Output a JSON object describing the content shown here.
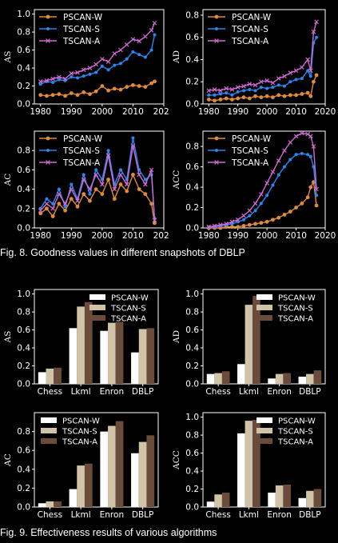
{
  "figure8": {
    "caption": "Fig. 8. Goodness values in different snapshots of DBLP"
  },
  "figure9": {
    "caption": "Fig. 9. Effectiveness results of various algorithms"
  },
  "colors": {
    "PSCAN-W_line": "#e08a3c",
    "TSCAN-S_line": "#2a86f0",
    "TSCAN-A_line": "#cf6ad3",
    "PSCAN-W_bar": "#ffffff",
    "TSCAN-S_bar": "#d1c3a8",
    "TSCAN-A_bar": "#6b4b3a"
  },
  "chart_data": [
    {
      "type": "line",
      "ylabel": "AS",
      "legend_position": "top-left",
      "x": [
        1980,
        1982,
        1984,
        1986,
        1988,
        1990,
        1992,
        1994,
        1996,
        1998,
        2000,
        2002,
        2004,
        2006,
        2008,
        2010,
        2012,
        2014,
        2016,
        2017
      ],
      "xlim": [
        1978,
        2020
      ],
      "xticks": [
        "1980",
        "1990",
        "2000",
        "2010",
        "2020"
      ],
      "ylim": [
        0,
        1.05
      ],
      "yticks": [
        "0.0",
        "0.2",
        "0.4",
        "0.6",
        "0.8",
        "1.0"
      ],
      "series": [
        {
          "name": "PSCAN-W",
          "values": [
            0.1,
            0.09,
            0.1,
            0.11,
            0.09,
            0.12,
            0.1,
            0.13,
            0.11,
            0.14,
            0.2,
            0.15,
            0.17,
            0.16,
            0.19,
            0.21,
            0.2,
            0.19,
            0.23,
            0.25
          ]
        },
        {
          "name": "TSCAN-S",
          "values": [
            0.22,
            0.25,
            0.24,
            0.27,
            0.26,
            0.3,
            0.29,
            0.31,
            0.33,
            0.35,
            0.42,
            0.38,
            0.43,
            0.45,
            0.5,
            0.58,
            0.55,
            0.52,
            0.6,
            0.77
          ]
        },
        {
          "name": "TSCAN-A",
          "values": [
            0.25,
            0.26,
            0.28,
            0.3,
            0.28,
            0.34,
            0.35,
            0.38,
            0.4,
            0.44,
            0.5,
            0.47,
            0.56,
            0.6,
            0.66,
            0.72,
            0.7,
            0.75,
            0.82,
            0.9
          ]
        }
      ]
    },
    {
      "type": "line",
      "ylabel": "AD",
      "legend_position": "top-left",
      "x": [
        1980,
        1982,
        1984,
        1986,
        1988,
        1990,
        1992,
        1994,
        1996,
        1998,
        2000,
        2002,
        2004,
        2006,
        2008,
        2010,
        2012,
        2014,
        2015,
        2016,
        2017
      ],
      "xlim": [
        1978,
        2020
      ],
      "xticks": [
        "1980",
        "1990",
        "2000",
        "2010",
        "2020"
      ],
      "ylim": [
        0,
        0.85
      ],
      "yticks": [
        "0.0",
        "0.2",
        "0.4",
        "0.6",
        "0.8"
      ],
      "series": [
        {
          "name": "PSCAN-W",
          "values": [
            0.04,
            0.03,
            0.04,
            0.05,
            0.04,
            0.05,
            0.06,
            0.05,
            0.07,
            0.06,
            0.07,
            0.06,
            0.08,
            0.07,
            0.08,
            0.08,
            0.09,
            0.1,
            0.07,
            0.2,
            0.26
          ]
        },
        {
          "name": "TSCAN-S",
          "values": [
            0.08,
            0.08,
            0.09,
            0.1,
            0.08,
            0.11,
            0.12,
            0.13,
            0.12,
            0.15,
            0.14,
            0.15,
            0.17,
            0.16,
            0.2,
            0.22,
            0.23,
            0.3,
            0.25,
            0.55,
            0.6
          ]
        },
        {
          "name": "TSCAN-A",
          "values": [
            0.12,
            0.13,
            0.12,
            0.14,
            0.13,
            0.15,
            0.16,
            0.18,
            0.17,
            0.2,
            0.21,
            0.19,
            0.23,
            0.25,
            0.28,
            0.3,
            0.33,
            0.4,
            0.3,
            0.65,
            0.74
          ]
        }
      ]
    },
    {
      "type": "line",
      "ylabel": "AC",
      "legend_position": "top-left",
      "x": [
        1980,
        1982,
        1984,
        1986,
        1988,
        1990,
        1992,
        1994,
        1996,
        1998,
        2000,
        2002,
        2004,
        2006,
        2008,
        2010,
        2012,
        2014,
        2016,
        2017
      ],
      "xlim": [
        1978,
        2020
      ],
      "xticks": [
        "1980",
        "1990",
        "2000",
        "2010",
        "2020"
      ],
      "ylim": [
        0,
        1.0
      ],
      "yticks": [
        "0.0",
        "0.2",
        "0.4",
        "0.6",
        "0.8"
      ],
      "series": [
        {
          "name": "PSCAN-W",
          "values": [
            0.15,
            0.2,
            0.12,
            0.25,
            0.18,
            0.3,
            0.22,
            0.35,
            0.28,
            0.4,
            0.35,
            0.5,
            0.3,
            0.45,
            0.38,
            0.55,
            0.4,
            0.35,
            0.25,
            0.05
          ]
        },
        {
          "name": "TSCAN-S",
          "values": [
            0.2,
            0.3,
            0.25,
            0.4,
            0.22,
            0.45,
            0.3,
            0.55,
            0.35,
            0.6,
            0.5,
            0.8,
            0.45,
            0.6,
            0.5,
            0.93,
            0.6,
            0.5,
            0.55,
            0.1
          ]
        },
        {
          "name": "TSCAN-A",
          "values": [
            0.18,
            0.25,
            0.2,
            0.35,
            0.25,
            0.4,
            0.28,
            0.5,
            0.4,
            0.55,
            0.45,
            0.75,
            0.4,
            0.55,
            0.45,
            0.85,
            0.55,
            0.45,
            0.6,
            0.08
          ]
        }
      ]
    },
    {
      "type": "line",
      "ylabel": "ACC",
      "legend_position": "top-left",
      "x": [
        1980,
        1982,
        1984,
        1986,
        1988,
        1990,
        1992,
        1994,
        1996,
        1998,
        2000,
        2002,
        2004,
        2006,
        2008,
        2010,
        2012,
        2014,
        2015,
        2016,
        2017
      ],
      "xlim": [
        1978,
        2020
      ],
      "xticks": [
        "1980",
        "1990",
        "2000",
        "2010",
        "2020"
      ],
      "ylim": [
        0,
        0.95
      ],
      "yticks": [
        "0.0",
        "0.2",
        "0.4",
        "0.6",
        "0.8"
      ],
      "series": [
        {
          "name": "PSCAN-W",
          "values": [
            0.0,
            0.0,
            0.0,
            0.01,
            0.01,
            0.01,
            0.02,
            0.03,
            0.04,
            0.05,
            0.06,
            0.08,
            0.1,
            0.13,
            0.16,
            0.2,
            0.24,
            0.3,
            0.4,
            0.45,
            0.22
          ]
        },
        {
          "name": "TSCAN-S",
          "values": [
            0.01,
            0.01,
            0.02,
            0.03,
            0.04,
            0.06,
            0.08,
            0.12,
            0.17,
            0.24,
            0.32,
            0.42,
            0.52,
            0.6,
            0.67,
            0.72,
            0.73,
            0.72,
            0.7,
            0.6,
            0.32
          ]
        },
        {
          "name": "TSCAN-A",
          "values": [
            0.01,
            0.02,
            0.03,
            0.04,
            0.06,
            0.08,
            0.12,
            0.17,
            0.24,
            0.33,
            0.44,
            0.55,
            0.66,
            0.76,
            0.84,
            0.9,
            0.93,
            0.92,
            0.9,
            0.8,
            0.38
          ]
        }
      ]
    },
    {
      "type": "bar",
      "ylabel": "AS",
      "legend_position": "top-right",
      "categories": [
        "Chess",
        "Lkml",
        "Enron",
        "DBLP"
      ],
      "ylim": [
        0,
        1.05
      ],
      "yticks": [
        "0.0",
        "0.2",
        "0.4",
        "0.6",
        "0.8",
        "1.0"
      ],
      "series": [
        {
          "name": "PSCAN-W",
          "values": [
            0.13,
            0.62,
            0.59,
            0.35
          ]
        },
        {
          "name": "TSCAN-S",
          "values": [
            0.17,
            0.86,
            0.68,
            0.61
          ]
        },
        {
          "name": "TSCAN-A",
          "values": [
            0.18,
            0.91,
            0.69,
            0.62
          ]
        }
      ]
    },
    {
      "type": "bar",
      "ylabel": "AD",
      "legend_position": "top-right",
      "categories": [
        "Chess",
        "Lkml",
        "Enron",
        "DBLP"
      ],
      "ylim": [
        0,
        1.05
      ],
      "yticks": [
        "0.0",
        "0.2",
        "0.4",
        "0.6",
        "0.8",
        "1.0"
      ],
      "series": [
        {
          "name": "PSCAN-W",
          "values": [
            0.11,
            0.22,
            0.06,
            0.08
          ]
        },
        {
          "name": "TSCAN-S",
          "values": [
            0.12,
            0.88,
            0.11,
            0.11
          ]
        },
        {
          "name": "TSCAN-A",
          "values": [
            0.14,
            0.98,
            0.12,
            0.15
          ]
        }
      ]
    },
    {
      "type": "bar",
      "ylabel": "AC",
      "legend_position": "top-left",
      "categories": [
        "Chess",
        "Lkml",
        "Enron",
        "DBLP"
      ],
      "ylim": [
        0,
        1.0
      ],
      "yticks": [
        "0.0",
        "0.2",
        "0.4",
        "0.6",
        "0.8"
      ],
      "series": [
        {
          "name": "PSCAN-W",
          "values": [
            0.04,
            0.19,
            0.8,
            0.57
          ]
        },
        {
          "name": "TSCAN-S",
          "values": [
            0.06,
            0.44,
            0.86,
            0.69
          ]
        },
        {
          "name": "TSCAN-A",
          "values": [
            0.06,
            0.46,
            0.91,
            0.76
          ]
        }
      ]
    },
    {
      "type": "bar",
      "ylabel": "ACC",
      "legend_position": "top-right",
      "categories": [
        "Chess",
        "Lkml",
        "Enron",
        "DBLP"
      ],
      "ylim": [
        0,
        1.05
      ],
      "yticks": [
        "0.0",
        "0.2",
        "0.4",
        "0.6",
        "0.8",
        "1.0"
      ],
      "series": [
        {
          "name": "PSCAN-W",
          "values": [
            0.06,
            0.82,
            0.16,
            0.1
          ]
        },
        {
          "name": "TSCAN-S",
          "values": [
            0.14,
            0.96,
            0.24,
            0.18
          ]
        },
        {
          "name": "TSCAN-A",
          "values": [
            0.16,
            0.97,
            0.25,
            0.2
          ]
        }
      ]
    }
  ]
}
